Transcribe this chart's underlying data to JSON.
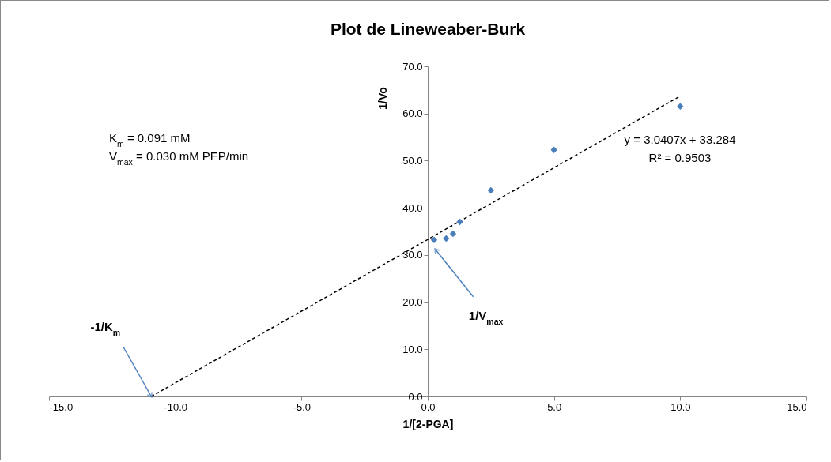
{
  "chart_data": {
    "type": "scatter",
    "title": "Plot de Lineweaber-Burk",
    "xlabel": "1/[2-PGA]",
    "ylabel": "1/Vo",
    "series": [
      {
        "type": "scatter",
        "color": "#4a7ebb",
        "marker": "diamond",
        "x": [
          0.25,
          0.73,
          1.0,
          1.27,
          2.5,
          5.0,
          10.0
        ],
        "values": [
          33.2,
          33.5,
          34.5,
          37.0,
          43.7,
          52.3,
          61.5
        ]
      },
      {
        "type": "line",
        "color": "#000000",
        "x": [
          -10.95,
          10
        ],
        "values": [
          0,
          63.7
        ],
        "line_style": "dashed",
        "marker": "none"
      }
    ],
    "xlim": [
      -15,
      15
    ],
    "xticks": [
      {
        "value": -15,
        "label": "-15.0"
      },
      {
        "value": -10,
        "label": "-10.0"
      },
      {
        "value": -5,
        "label": "-5.0"
      },
      {
        "value": 0,
        "label": "0.0"
      },
      {
        "value": 5,
        "label": "5.0"
      },
      {
        "value": 10,
        "label": "10.0"
      },
      {
        "value": 15,
        "label": "15.0"
      }
    ],
    "ylim": [
      0,
      70
    ],
    "yticks": [
      {
        "value": 0,
        "label": "0.0"
      },
      {
        "value": 10,
        "label": "10.0"
      },
      {
        "value": 20,
        "label": "20.0"
      },
      {
        "value": 30,
        "label": "30.0"
      },
      {
        "value": 40,
        "label": "40.0"
      },
      {
        "value": 50,
        "label": "50.0"
      },
      {
        "value": 60,
        "label": "60.0"
      },
      {
        "value": 70,
        "label": "70.0"
      }
    ],
    "annotations": [
      "K$_{m}$    = 0.091 mM",
      "V$_{max}$ = 0.030 mM PEP/min",
      "y = 3.0407x + 33.284",
      "R² = 0.9503",
      {
        "text": "-1/K$_{m}$",
        "x": -10.95,
        "y": 0
      },
      {
        "text": "1/V$_{max}$",
        "x": 0.3,
        "y": 31.2
      }
    ]
  }
}
